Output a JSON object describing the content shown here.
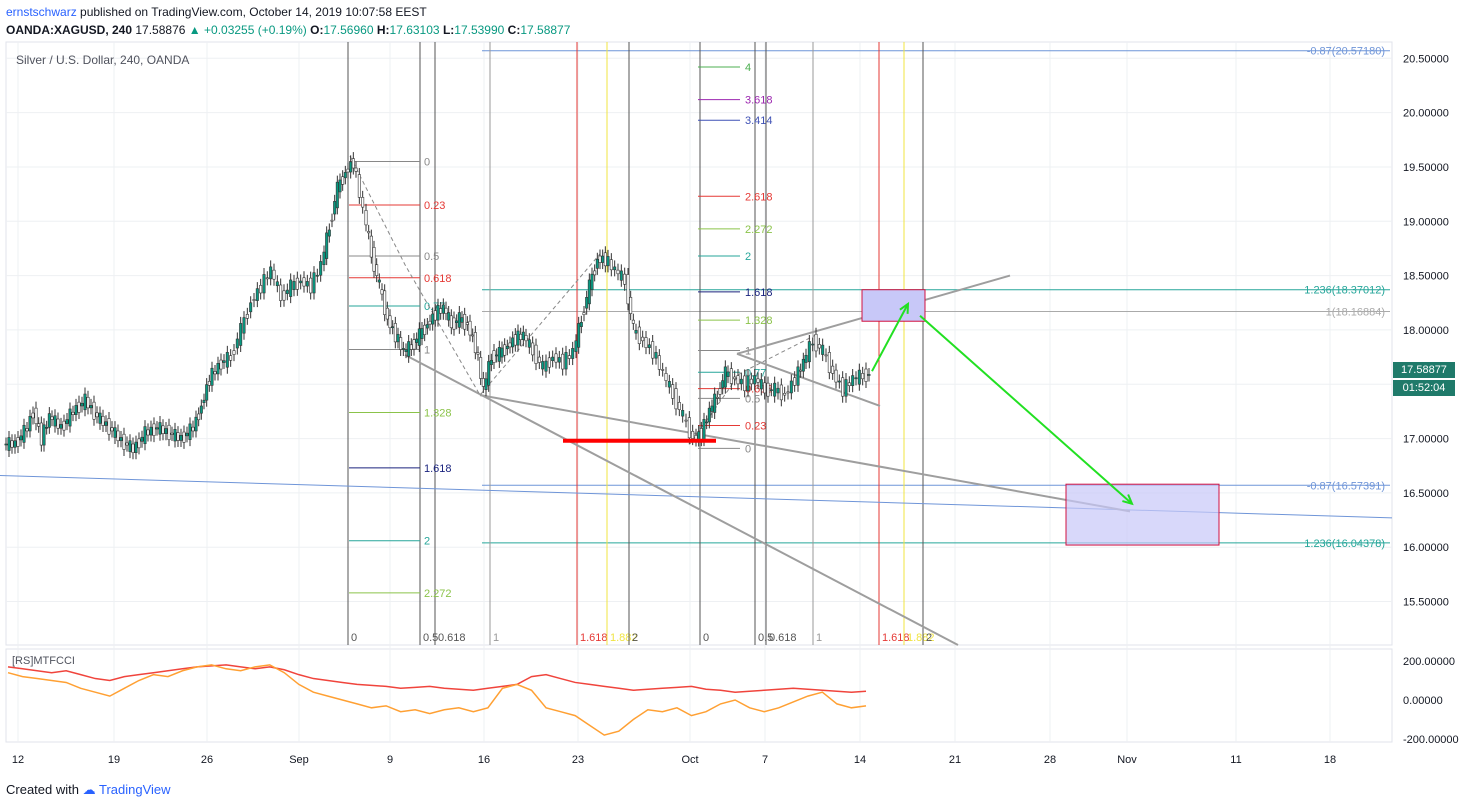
{
  "header": {
    "user": "ernstschwarz",
    "published_text": "published on TradingView.com, October 14, 2019 10:07:58 EEST",
    "symbol": "OANDA:XAGUSD, 240",
    "last": "17.58876",
    "change": "+0.03255 (+0.19%)",
    "o_label": "O:",
    "o": "17.56960",
    "h_label": "H:",
    "h": "17.63103",
    "l_label": "L:",
    "l": "17.53990",
    "c_label": "C:",
    "c": "17.58877"
  },
  "chart_title": "Silver / U.S. Dollar, 240, OANDA",
  "rsi_label": "[RS]MTFCCI",
  "price_badge": "17.58877",
  "time_badge": "01:52:04",
  "footer": {
    "created": "Created with",
    "brand": "TradingView"
  },
  "colors": {
    "up": "#089981",
    "down": "#555555",
    "badge": "#1f7a6a",
    "grid": "#eef0f3",
    "support": "#ff0000",
    "arrow": "#22e022",
    "zone_fill": "#c8c8f8",
    "zone_border": "#d01040",
    "rsi_red": "#f0443c",
    "rsi_orange": "#ffa033"
  },
  "chart_data": {
    "type": "candlestick",
    "y_axis": {
      "range": [
        15.1,
        20.65
      ],
      "ticks": [
        "20.50000",
        "20.00000",
        "19.50000",
        "19.00000",
        "18.50000",
        "18.00000",
        "17.50000",
        "17.00000",
        "16.50000",
        "16.00000",
        "15.50000"
      ]
    },
    "x_axis": {
      "ticks": [
        "12",
        "19",
        "26",
        "Sep",
        "9",
        "16",
        "23",
        "Oct",
        "7",
        "14",
        "21",
        "28",
        "Nov",
        "11",
        "18"
      ]
    },
    "price_path": [
      [
        0,
        16.95
      ],
      [
        12,
        16.95
      ],
      [
        24,
        17.1
      ],
      [
        30,
        17.25
      ],
      [
        38,
        17.0
      ],
      [
        46,
        17.2
      ],
      [
        58,
        17.1
      ],
      [
        70,
        17.25
      ],
      [
        82,
        17.35
      ],
      [
        94,
        17.2
      ],
      [
        106,
        17.1
      ],
      [
        118,
        16.98
      ],
      [
        130,
        16.9
      ],
      [
        142,
        17.05
      ],
      [
        154,
        17.1
      ],
      [
        166,
        17.05
      ],
      [
        178,
        17.0
      ],
      [
        190,
        17.1
      ],
      [
        198,
        17.3
      ],
      [
        206,
        17.55
      ],
      [
        218,
        17.7
      ],
      [
        228,
        17.75
      ],
      [
        238,
        18.0
      ],
      [
        248,
        18.25
      ],
      [
        258,
        18.4
      ],
      [
        268,
        18.55
      ],
      [
        278,
        18.3
      ],
      [
        288,
        18.4
      ],
      [
        298,
        18.45
      ],
      [
        308,
        18.4
      ],
      [
        318,
        18.6
      ],
      [
        326,
        18.95
      ],
      [
        334,
        19.3
      ],
      [
        342,
        19.45
      ],
      [
        350,
        19.55
      ],
      [
        360,
        19.1
      ],
      [
        368,
        18.7
      ],
      [
        376,
        18.4
      ],
      [
        384,
        18.1
      ],
      [
        392,
        17.95
      ],
      [
        400,
        17.8
      ],
      [
        408,
        17.85
      ],
      [
        416,
        17.95
      ],
      [
        424,
        18.05
      ],
      [
        432,
        18.15
      ],
      [
        440,
        18.2
      ],
      [
        448,
        18.05
      ],
      [
        456,
        18.1
      ],
      [
        464,
        18.05
      ],
      [
        472,
        17.85
      ],
      [
        480,
        17.45
      ],
      [
        488,
        17.75
      ],
      [
        496,
        17.78
      ],
      [
        504,
        17.85
      ],
      [
        512,
        17.92
      ],
      [
        520,
        17.95
      ],
      [
        530,
        17.8
      ],
      [
        540,
        17.65
      ],
      [
        550,
        17.75
      ],
      [
        560,
        17.7
      ],
      [
        570,
        17.8
      ],
      [
        578,
        18.1
      ],
      [
        586,
        18.4
      ],
      [
        594,
        18.65
      ],
      [
        602,
        18.65
      ],
      [
        612,
        18.55
      ],
      [
        622,
        18.45
      ],
      [
        630,
        18.0
      ],
      [
        640,
        17.9
      ],
      [
        650,
        17.8
      ],
      [
        660,
        17.6
      ],
      [
        670,
        17.4
      ],
      [
        680,
        17.2
      ],
      [
        690,
        17.0
      ],
      [
        698,
        17.05
      ],
      [
        706,
        17.25
      ],
      [
        714,
        17.4
      ],
      [
        722,
        17.6
      ],
      [
        732,
        17.55
      ],
      [
        742,
        17.5
      ],
      [
        752,
        17.55
      ],
      [
        762,
        17.45
      ],
      [
        772,
        17.45
      ],
      [
        782,
        17.4
      ],
      [
        792,
        17.55
      ],
      [
        800,
        17.7
      ],
      [
        810,
        17.9
      ],
      [
        820,
        17.8
      ],
      [
        830,
        17.6
      ],
      [
        840,
        17.45
      ],
      [
        850,
        17.55
      ],
      [
        860,
        17.58
      ],
      [
        866,
        17.59
      ]
    ],
    "levels_left": [
      {
        "label": "0",
        "price": 19.55,
        "color": "#888888"
      },
      {
        "label": "0.23",
        "price": 19.15,
        "color": "#e53935"
      },
      {
        "label": "0.5",
        "price": 18.68,
        "color": "#888888"
      },
      {
        "label": "0.618",
        "price": 18.48,
        "color": "#e53935"
      },
      {
        "label": "0.77",
        "price": 18.22,
        "color": "#26a69a"
      },
      {
        "label": "1",
        "price": 17.82,
        "color": "#888888"
      },
      {
        "label": "1.328",
        "price": 17.24,
        "color": "#8bc34a"
      },
      {
        "label": "1.618",
        "price": 16.73,
        "color": "#1a237e"
      },
      {
        "label": "2",
        "price": 16.06,
        "color": "#26a69a"
      },
      {
        "label": "2.272",
        "price": 15.58,
        "color": "#8bc34a"
      }
    ],
    "levels_right": [
      {
        "label": "4",
        "price": 20.42,
        "color": "#4caf50"
      },
      {
        "label": "3.618",
        "price": 20.12,
        "color": "#9c27b0"
      },
      {
        "label": "3.414",
        "price": 19.93,
        "color": "#3f51b5"
      },
      {
        "label": "2.618",
        "price": 19.23,
        "color": "#e53935"
      },
      {
        "label": "2.272",
        "price": 18.93,
        "color": "#8bc34a"
      },
      {
        "label": "2",
        "price": 18.68,
        "color": "#26a69a"
      },
      {
        "label": "1.618",
        "price": 18.35,
        "color": "#1a237e"
      },
      {
        "label": "1.328",
        "price": 18.09,
        "color": "#8bc34a"
      },
      {
        "label": "1",
        "price": 17.81,
        "color": "#888888"
      },
      {
        "label": "0.77",
        "price": 17.61,
        "color": "#26a69a"
      },
      {
        "label": "0.618",
        "price": 17.46,
        "color": "#e53935"
      },
      {
        "label": "0.5",
        "price": 17.37,
        "color": "#888888"
      },
      {
        "label": "0.23",
        "price": 17.12,
        "color": "#e53935"
      },
      {
        "label": "0",
        "price": 16.91,
        "color": "#888888"
      }
    ],
    "long_levels": [
      {
        "label": "-0.87(20.57180)",
        "price": 20.57,
        "color": "#6f95d8"
      },
      {
        "label": "1.236(18.37012)",
        "price": 18.37,
        "color": "#26a69a"
      },
      {
        "label": "1(18.16884)",
        "price": 18.17,
        "color": "#aaaaaa"
      },
      {
        "label": "-0.87(16.57391)",
        "price": 16.57,
        "color": "#6f95d8"
      },
      {
        "label": "1.236(16.04378)",
        "price": 16.04,
        "color": "#26a69a"
      }
    ],
    "time_fibs": [
      {
        "label": "0",
        "x": 348,
        "color": "#555555"
      },
      {
        "label": "0.5",
        "x": 420,
        "color": "#555555"
      },
      {
        "label": "0.618",
        "x": 435,
        "color": "#555555"
      },
      {
        "label": "1",
        "x": 490,
        "color": "#999999"
      },
      {
        "label": "1.618",
        "x": 577,
        "color": "#e53935"
      },
      {
        "label": "1.882",
        "x": 607,
        "color": "#f0e442"
      },
      {
        "label": "2",
        "x": 629,
        "color": "#555555"
      },
      {
        "label": "0",
        "x": 700,
        "color": "#555555"
      },
      {
        "label": "0.5",
        "x": 755,
        "color": "#555555"
      },
      {
        "label": "0.618",
        "x": 766,
        "color": "#555555"
      },
      {
        "label": "1",
        "x": 813,
        "color": "#999999"
      },
      {
        "label": "1.618",
        "x": 879,
        "color": "#e53935"
      },
      {
        "label": "1.882",
        "x": 904,
        "color": "#f0e442"
      },
      {
        "label": "2",
        "x": 923,
        "color": "#555555"
      }
    ],
    "rsi_axis": {
      "ticks": [
        "200.00000",
        "0.00000",
        "-200.00000"
      ],
      "range": [
        -200,
        200
      ]
    },
    "rsi_red": [
      170,
      160,
      150,
      140,
      150,
      130,
      110,
      100,
      120,
      130,
      140,
      150,
      160,
      170,
      175,
      180,
      170,
      160,
      170,
      155,
      130,
      110,
      100,
      90,
      80,
      75,
      70,
      60,
      65,
      70,
      60,
      55,
      50,
      60,
      70,
      80,
      120,
      130,
      110,
      90,
      80,
      70,
      60,
      50,
      55,
      60,
      65,
      70,
      55,
      50,
      40,
      45,
      50,
      55,
      60,
      55,
      50,
      45,
      40,
      45
    ],
    "rsi_orange": [
      140,
      120,
      110,
      100,
      90,
      60,
      40,
      20,
      60,
      100,
      130,
      120,
      150,
      170,
      180,
      160,
      150,
      170,
      180,
      140,
      80,
      40,
      20,
      0,
      -20,
      -40,
      -30,
      -60,
      -50,
      -70,
      -50,
      -40,
      -60,
      -40,
      60,
      80,
      50,
      -40,
      -60,
      -80,
      -130,
      -180,
      -160,
      -100,
      -50,
      -60,
      -40,
      -80,
      -60,
      -20,
      0,
      -40,
      -60,
      -40,
      -10,
      20,
      40,
      -20,
      -40,
      -30
    ],
    "annotations": {
      "support_line_price": 16.98,
      "target_zone_upper": [
        18.37,
        18.08
      ],
      "target_zone_lower": [
        16.58,
        16.02
      ]
    }
  }
}
